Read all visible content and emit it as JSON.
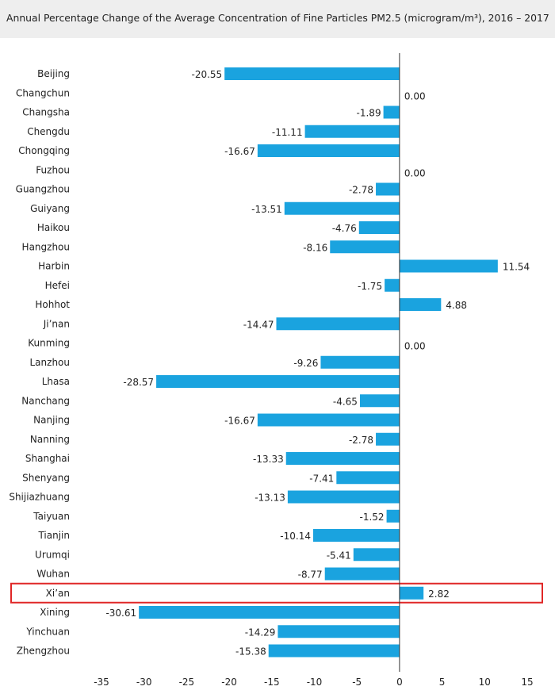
{
  "chart_data": {
    "type": "bar",
    "orientation": "horizontal",
    "title": "Annual Percentage Change of the Average Concentration of Fine Particles PM2.5 (microgram/m³), 2016 – 2017",
    "categories": [
      "Beijing",
      "Changchun",
      "Changsha",
      "Chengdu",
      "Chongqing",
      "Fuzhou",
      "Guangzhou",
      "Guiyang",
      "Haikou",
      "Hangzhou",
      "Harbin",
      "Hefei",
      "Hohhot",
      "Ji’nan",
      "Kunming",
      "Lanzhou",
      "Lhasa",
      "Nanchang",
      "Nanjing",
      "Nanning",
      "Shanghai",
      "Shenyang",
      "Shijiazhuang",
      "Taiyuan",
      "Tianjin",
      "Urumqi",
      "Wuhan",
      "Xi’an",
      "Xining",
      "Yinchuan",
      "Zhengzhou"
    ],
    "values": [
      -20.55,
      0.0,
      -1.89,
      -11.11,
      -16.67,
      0.0,
      -2.78,
      -13.51,
      -4.76,
      -8.16,
      11.54,
      -1.75,
      4.88,
      -14.47,
      0.0,
      -9.26,
      -28.57,
      -4.65,
      -16.67,
      -2.78,
      -13.33,
      -7.41,
      -13.13,
      -1.52,
      -10.14,
      -5.41,
      -8.77,
      2.82,
      -30.61,
      -14.29,
      -15.38
    ],
    "value_labels": [
      "-20.55",
      "0.00",
      "-1.89",
      "-11.11",
      "-16.67",
      "0.00",
      "-2.78",
      "-13.51",
      "-4.76",
      "-8.16",
      "11.54",
      "-1.75",
      "4.88",
      "-14.47",
      "0.00",
      "-9.26",
      "-28.57",
      "-4.65",
      "-16.67",
      "-2.78",
      "-13.33",
      "-7.41",
      "-13.13",
      "-1.52",
      "-10.14",
      "-5.41",
      "-8.77",
      "2.82",
      "-30.61",
      "-14.29",
      "-15.38"
    ],
    "xlim": [
      -35,
      15
    ],
    "xticks": [
      -35,
      -30,
      -25,
      -20,
      -15,
      -10,
      -5,
      0,
      5,
      10,
      15
    ],
    "xtick_labels": [
      "-35",
      "-30",
      "-25",
      "-20",
      "-15",
      "-10",
      "-5",
      "0",
      "5",
      "10",
      "15"
    ],
    "highlight_category": "Xi’an",
    "grid": false,
    "colors": {
      "bar": "#1aa3df",
      "highlight_box": "#e02727",
      "zero_line": "#333333"
    }
  }
}
